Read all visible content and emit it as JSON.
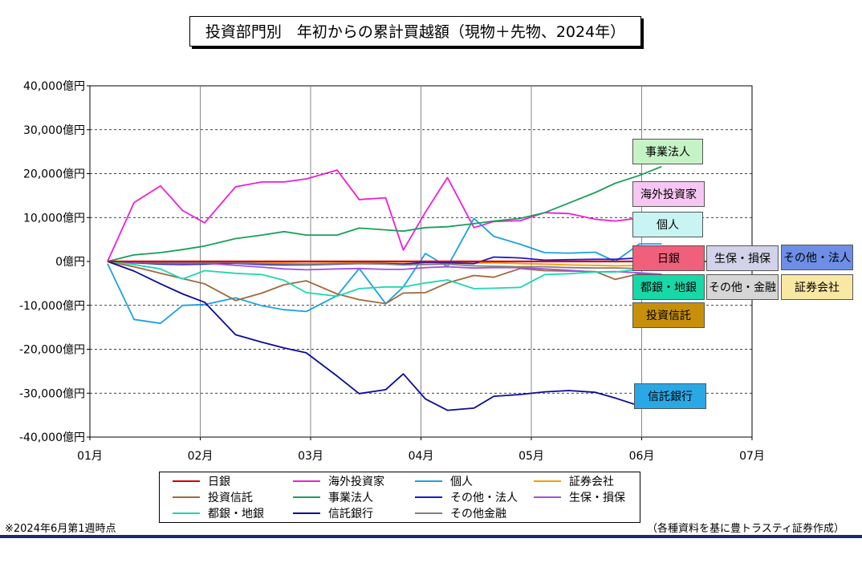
{
  "title": "投資部門別　年初からの累計買越額（現物＋先物、2024年）",
  "footnote": "※2024年6月第1週時点",
  "source": "（各種資料を基に豊トラスティ証券作成）",
  "chart_data": {
    "type": "line",
    "ylim": [
      -40000,
      40000
    ],
    "yticks": [
      40000,
      30000,
      20000,
      10000,
      0,
      -10000,
      -20000,
      -30000,
      -40000
    ],
    "ytick_labels": [
      "40,000億円",
      "30,000億円",
      "20,000億円",
      "10,000億円",
      "0億円",
      "-10,000億円",
      "-20,000億円",
      "-30,000億円",
      "-40,000億円"
    ],
    "xlim": [
      0,
      30
    ],
    "xticks": [
      0,
      5,
      10,
      15,
      20,
      25,
      30
    ],
    "xtick_labels": [
      "01月",
      "02月",
      "03月",
      "04月",
      "05月",
      "06月",
      "07月"
    ],
    "x": [
      0.8,
      2,
      3.2,
      4.2,
      5.2,
      6.6,
      7.8,
      8.8,
      9.8,
      11.2,
      12.2,
      13.4,
      14.2,
      15.2,
      16.2,
      17.4,
      18.3,
      19.5,
      20.6,
      21.7,
      22.9,
      23.8,
      24.9,
      25.9
    ],
    "series": [
      {
        "name": "日銀",
        "color": "#d40000",
        "values": [
          0,
          0,
          0,
          0,
          0,
          0,
          0,
          0,
          0,
          0,
          0,
          0,
          0,
          0,
          0,
          0,
          0,
          0,
          0,
          0,
          0,
          0,
          0,
          0
        ]
      },
      {
        "name": "海外投資家",
        "color": "#ee1fd6",
        "values": [
          0,
          13400,
          17200,
          11600,
          8800,
          17000,
          18100,
          18100,
          18800,
          20800,
          14100,
          14500,
          2600,
          11200,
          19100,
          7700,
          9100,
          9300,
          11100,
          10900,
          9600,
          9200,
          9900,
          6600
        ]
      },
      {
        "name": "個人",
        "color": "#1ca1e2",
        "values": [
          -500,
          -13200,
          -14100,
          -10000,
          -9800,
          -8300,
          -10100,
          -11000,
          -11400,
          -7800,
          -1600,
          -9600,
          -5800,
          1800,
          -1200,
          9800,
          5700,
          3900,
          2000,
          1900,
          2100,
          0,
          4000,
          4000
        ]
      },
      {
        "name": "証券会社",
        "color": "#f0a000",
        "values": [
          0,
          -100,
          -200,
          -200,
          -200,
          -300,
          -400,
          -400,
          -500,
          -400,
          -300,
          -400,
          -500,
          -300,
          -200,
          -400,
          -300,
          -500,
          -600,
          -800,
          -900,
          -1000,
          -900,
          -900
        ]
      },
      {
        "name": "投資信託",
        "color": "#a0693c",
        "values": [
          0,
          -1200,
          -2700,
          -3900,
          -5100,
          -8900,
          -7200,
          -5300,
          -4400,
          -7400,
          -8700,
          -9600,
          -7200,
          -7100,
          -4900,
          -3200,
          -3600,
          -1600,
          -2100,
          -2200,
          -2300,
          -4100,
          -2800,
          -3300
        ]
      },
      {
        "name": "事業法人",
        "color": "#1aa05a",
        "values": [
          0,
          1500,
          2000,
          2700,
          3500,
          5200,
          6000,
          6800,
          6000,
          6000,
          7600,
          7200,
          6900,
          7700,
          7900,
          8600,
          9200,
          9800,
          11100,
          13300,
          15700,
          17800,
          19600,
          21600
        ]
      },
      {
        "name": "その他・法人",
        "color": "#1a1ad0",
        "values": [
          0,
          -300,
          -600,
          -700,
          -600,
          -400,
          -700,
          -800,
          -800,
          -600,
          -500,
          -500,
          -600,
          -200,
          -300,
          -500,
          1000,
          800,
          300,
          400,
          500,
          500,
          800,
          800
        ]
      },
      {
        "name": "生保・損保",
        "color": "#a052e0",
        "values": [
          0,
          -200,
          -400,
          -500,
          -400,
          -900,
          -1300,
          -1700,
          -1900,
          -1700,
          -1600,
          -1800,
          -1800,
          -1400,
          -1200,
          -1500,
          -1400,
          -1400,
          -1700,
          -2000,
          -2400,
          -2300,
          -2600,
          -2900
        ]
      },
      {
        "name": "都銀・地銀",
        "color": "#1ed8b0",
        "values": [
          0,
          -700,
          -1700,
          -4000,
          -2100,
          -2700,
          -3000,
          -4300,
          -7100,
          -7900,
          -6200,
          -5800,
          -5800,
          -4900,
          -4200,
          -6200,
          -6100,
          -5900,
          -3000,
          -2800,
          -2400,
          -2400,
          -1800,
          -1800
        ]
      },
      {
        "name": "信託銀行",
        "color": "#0b0b9a",
        "values": [
          0,
          -2200,
          -5100,
          -7400,
          -9300,
          -16700,
          -18400,
          -19700,
          -20800,
          -26100,
          -30100,
          -29200,
          -25600,
          -31300,
          -33900,
          -33400,
          -30700,
          -30300,
          -29700,
          -29400,
          -29800,
          -31100,
          -32900,
          -32900
        ]
      },
      {
        "name": "その他金融",
        "color": "#808080",
        "values": [
          0,
          -100,
          -200,
          -300,
          -200,
          -300,
          -500,
          -600,
          -700,
          -500,
          -500,
          -600,
          -800,
          -700,
          -600,
          -1000,
          -1100,
          -1200,
          -1200,
          -1400,
          -1500,
          -1500,
          -1600,
          -1700
        ]
      }
    ],
    "annotations": [
      {
        "text": "事業法人",
        "bg": "#c6f3c6"
      },
      {
        "text": "海外投資家",
        "bg": "#f7c6f2"
      },
      {
        "text": "個人",
        "bg": "#c8f4f4"
      },
      {
        "text": "日銀",
        "bg": "#f0607a"
      },
      {
        "text": "生保・損保",
        "bg": "#d2d2ea"
      },
      {
        "text": "その他・法人",
        "bg": "#6e8ee6"
      },
      {
        "text": "都銀・地銀",
        "bg": "#18d8a8"
      },
      {
        "text": "その他・金融",
        "bg": "#d6d6d6"
      },
      {
        "text": "証券会社",
        "bg": "#f8e8a4"
      },
      {
        "text": "投資信託",
        "bg": "#c8900a"
      },
      {
        "text": "信託銀行",
        "bg": "#2aa8e6"
      }
    ]
  }
}
